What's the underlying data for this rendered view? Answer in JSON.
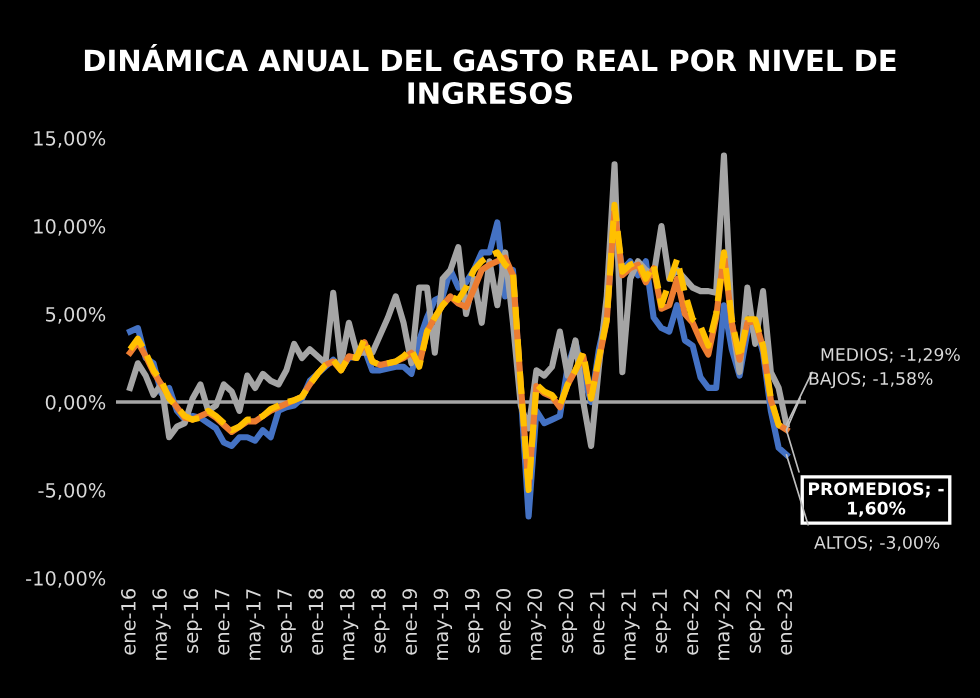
{
  "chart_data": {
    "type": "line",
    "title": "DINÁMICA ANUAL DEL GASTO REAL POR NIVEL DE\nINGRESOS",
    "categories": [
      "ene-16",
      null,
      null,
      null,
      "may-16",
      null,
      null,
      null,
      "sep-16",
      null,
      null,
      null,
      "ene-17",
      null,
      null,
      null,
      "may-17",
      null,
      null,
      null,
      "sep-17",
      null,
      null,
      null,
      "ene-18",
      null,
      null,
      null,
      "may-18",
      null,
      null,
      null,
      "sep-18",
      null,
      null,
      null,
      "ene-19",
      null,
      null,
      null,
      "may-19",
      null,
      null,
      null,
      "sep-19",
      null,
      null,
      null,
      "ene-20",
      null,
      null,
      null,
      "may-20",
      null,
      null,
      null,
      "sep-20",
      null,
      null,
      null,
      "ene-21",
      null,
      null,
      null,
      "may-21",
      null,
      null,
      null,
      "sep-21",
      null,
      null,
      null,
      "ene-22",
      null,
      null,
      null,
      "may-22",
      null,
      null,
      null,
      "sep-22",
      null,
      null,
      null,
      "ene-23"
    ],
    "series": [
      {
        "color": "#4472c4",
        "values": [
          4.0,
          4.2,
          2.5,
          2.2,
          0.5,
          0.8,
          -0.5,
          -1.0,
          -0.8,
          -0.9,
          -1.2,
          -1.5,
          -2.3,
          -2.5,
          -2.0,
          -2.0,
          -2.2,
          -1.6,
          -2.0,
          -0.5,
          -0.3,
          -0.2,
          0.2,
          1.2,
          1.6,
          2.0,
          2.4,
          1.9,
          2.5,
          2.6,
          3.0,
          1.8,
          1.8,
          1.9,
          2.0,
          2.0,
          1.6,
          3.5,
          4.8,
          5.8,
          6.0,
          7.5,
          6.5,
          6.8,
          7.5,
          8.5,
          8.5,
          10.2,
          6.0,
          7.5,
          0.5,
          -6.5,
          -0.5,
          -1.2,
          -1.0,
          -0.8,
          2.0,
          3.4,
          1.5,
          0.0,
          3.0,
          5.0,
          10.5,
          7.5,
          8.0,
          7.2,
          8.0,
          4.8,
          4.2,
          4.0,
          5.5,
          3.5,
          3.2,
          1.4,
          0.8,
          0.8,
          5.5,
          3.0,
          1.5,
          4.0,
          4.5,
          2.8,
          -0.5,
          -2.6,
          -3.0
        ]
      },
      {
        "color": "#a5a5a5",
        "values": [
          0.8,
          2.2,
          1.5,
          0.4,
          1.0,
          -2.0,
          -1.4,
          -1.2,
          0.2,
          1.0,
          -0.5,
          -0.2,
          1.0,
          0.6,
          -0.5,
          1.5,
          0.8,
          1.6,
          1.2,
          1.0,
          1.8,
          3.3,
          2.5,
          3.0,
          2.6,
          2.2,
          6.2,
          2.2,
          4.5,
          2.8,
          2.8,
          2.8,
          3.8,
          4.8,
          6.0,
          4.5,
          2.2,
          6.5,
          6.5,
          2.8,
          7.0,
          7.5,
          8.8,
          5.0,
          7.0,
          4.5,
          8.0,
          5.5,
          8.5,
          4.5,
          -0.2,
          -1.5,
          1.8,
          1.5,
          2.0,
          4.0,
          1.5,
          3.5,
          0.0,
          -2.5,
          2.0,
          6.0,
          13.5,
          1.7,
          7.0,
          8.0,
          7.5,
          7.2,
          10.0,
          7.0,
          7.5,
          7.0,
          6.5,
          6.3,
          6.3,
          6.2,
          14.0,
          4.5,
          1.7,
          6.5,
          3.3,
          6.3,
          1.7,
          0.8,
          -1.29
        ]
      },
      {
        "color": "#ed7d31",
        "values": [
          2.8,
          3.4,
          2.6,
          1.7,
          1.0,
          0.3,
          -0.3,
          -0.9,
          -1.0,
          -0.8,
          -0.6,
          -0.9,
          -1.3,
          -1.7,
          -1.4,
          -1.1,
          -1.1,
          -0.8,
          -0.5,
          -0.3,
          -0.1,
          0.1,
          0.3,
          1.0,
          1.6,
          2.1,
          2.3,
          1.8,
          2.6,
          2.5,
          3.4,
          2.3,
          2.1,
          2.2,
          2.3,
          2.5,
          2.8,
          2.1,
          4.0,
          4.8,
          5.5,
          6.0,
          5.6,
          5.4,
          6.4,
          7.5,
          7.8,
          8.0,
          8.2,
          7.2,
          1.0,
          -4.8,
          0.9,
          0.5,
          0.3,
          -0.3,
          1.0,
          1.8,
          2.6,
          0.2,
          2.4,
          4.6,
          11.0,
          7.2,
          7.6,
          7.8,
          6.8,
          7.6,
          5.3,
          5.5,
          7.0,
          5.0,
          4.5,
          3.5,
          2.7,
          4.8,
          8.4,
          4.5,
          2.4,
          4.5,
          4.6,
          3.1,
          0.1,
          -1.3,
          -1.58
        ]
      },
      {
        "color": "#ffc000",
        "line_style": "dashed",
        "values": [
          3.0,
          3.6,
          2.8,
          1.8,
          1.2,
          0.2,
          -0.3,
          -0.8,
          -1.0,
          -0.9,
          -0.5,
          -0.8,
          -1.2,
          -1.6,
          -1.4,
          -1.0,
          -1.0,
          -0.8,
          -0.4,
          -0.2,
          0.0,
          0.1,
          0.3,
          1.0,
          1.6,
          2.1,
          2.4,
          1.8,
          2.6,
          2.5,
          3.6,
          2.3,
          2.1,
          2.2,
          2.3,
          2.6,
          3.0,
          2.0,
          4.0,
          4.8,
          5.5,
          6.0,
          5.8,
          6.5,
          7.5,
          8.0,
          8.3,
          8.5,
          7.8,
          7.4,
          1.0,
          -5.0,
          1.0,
          0.6,
          0.4,
          -0.2,
          1.0,
          1.8,
          2.8,
          0.2,
          2.5,
          4.7,
          11.2,
          7.4,
          7.8,
          8.0,
          7.0,
          7.8,
          5.5,
          6.8,
          8.1,
          6.2,
          4.7,
          4.3,
          3.2,
          5.0,
          8.5,
          4.7,
          2.5,
          4.7,
          4.7,
          3.2,
          0.2,
          -1.3,
          -1.6
        ]
      }
    ],
    "ylim": [
      -10,
      15
    ],
    "yticks": [
      {
        "value": -10,
        "label": "-10,00%"
      },
      {
        "value": -5,
        "label": "-5,00%"
      },
      {
        "value": 0,
        "label": "0,00%"
      },
      {
        "value": 5,
        "label": "5,00%"
      },
      {
        "value": 10,
        "label": "10,00%"
      },
      {
        "value": 15,
        "label": "15,00%"
      }
    ],
    "ref_lines": [
      {
        "axis": "y",
        "value": 0,
        "color": "#a5a5a5"
      }
    ],
    "annotations": [
      {
        "text": "MEDIOS; -1,29%",
        "x": "ene-23",
        "y": -1.29
      },
      {
        "text": "BAJOS; -1,58%",
        "x": "ene-23",
        "y": -1.58
      },
      {
        "text": "PROMEDIOS; -\n1,60%",
        "x": "ene-23",
        "y": -1.6
      },
      {
        "text": "ALTOS; -3,00%",
        "x": "ene-23",
        "y": -3.0
      }
    ],
    "grid": false,
    "legend": false
  }
}
